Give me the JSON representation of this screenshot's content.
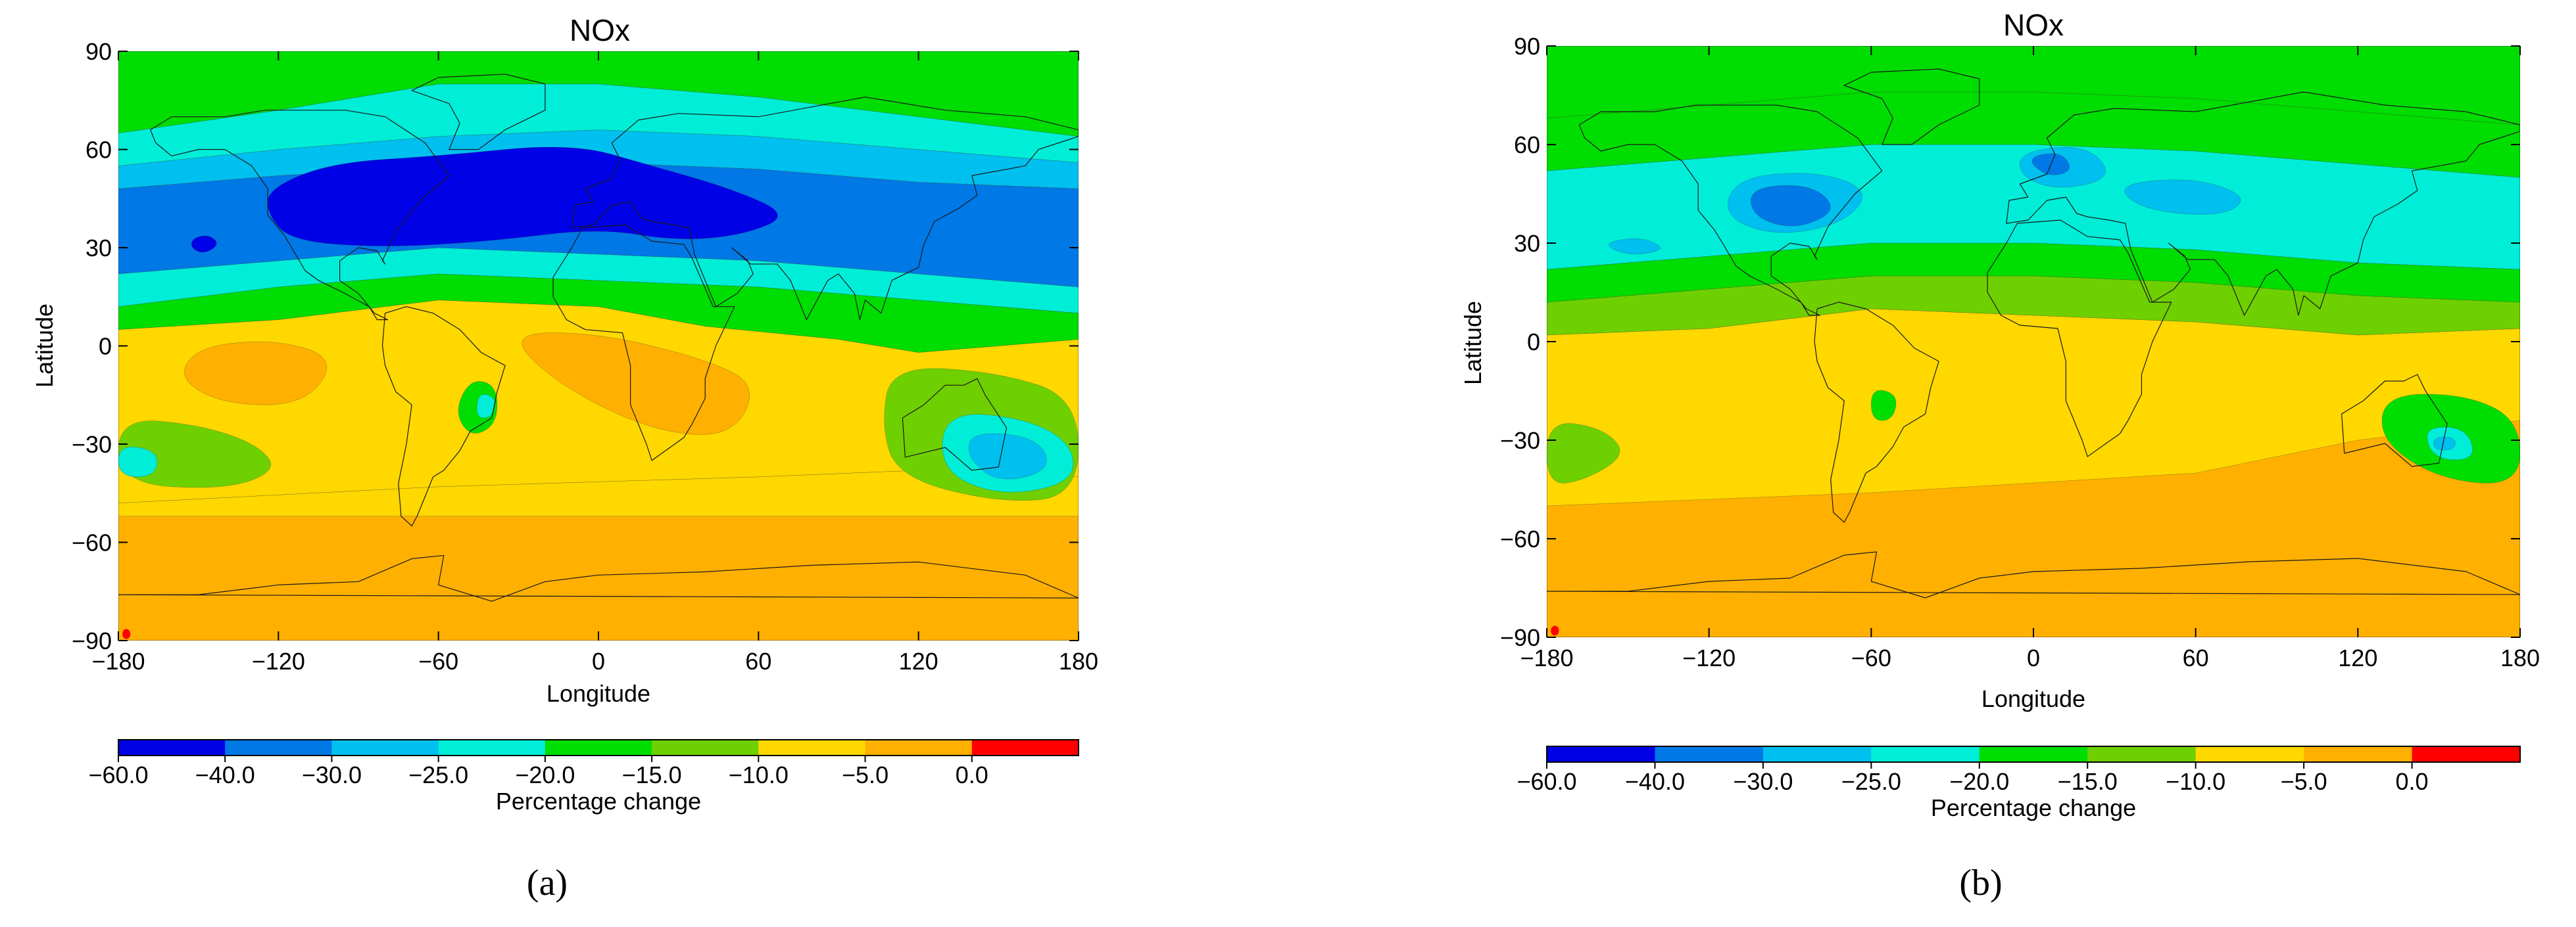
{
  "colors": {
    "band_-60_-40": "#0000e6",
    "band_-40_-30": "#0078e6",
    "band_-30_-25": "#00c0ef",
    "band_-25_-20": "#00eed8",
    "band_-20_-15": "#00dd00",
    "band_-15_-10": "#6ed000",
    "band_-10_-5": "#ffd800",
    "band_-5_0": "#ffb000",
    "band_0_plus": "#ff0000",
    "coastline": "#1a1a1a"
  },
  "chart_data": [
    {
      "type": "heatmap",
      "panel": "(a)",
      "title": "NOx",
      "xlabel": "Longitude",
      "ylabel": "Latitude",
      "xlim": [
        -180,
        180
      ],
      "ylim": [
        -90,
        90
      ],
      "xticks": [
        "−180",
        "−120",
        "−60",
        "0",
        "60",
        "120",
        "180"
      ],
      "yticks": [
        "90",
        "60",
        "30",
        "0",
        "−30",
        "−60",
        "−90"
      ],
      "colorbar_label": "Percentage change",
      "colorbar_ticks": [
        "−60.0",
        "−40.0",
        "−30.0",
        "−25.0",
        "−20.0",
        "−15.0",
        "−10.0",
        "−5.0",
        "0.0"
      ],
      "levels": [
        -60,
        -40,
        -30,
        -25,
        -20,
        -15,
        -10,
        -5,
        0
      ],
      "latitude_profile_percentage_change": [
        {
          "lat_range": [
            65,
            90
          ],
          "value_range": [
            -20,
            -15
          ]
        },
        {
          "lat_range": [
            55,
            65
          ],
          "value_range": [
            -25,
            -20
          ]
        },
        {
          "lat_range": [
            45,
            55
          ],
          "value_range": [
            -30,
            -25
          ]
        },
        {
          "lat_range": [
            25,
            45
          ],
          "value_range": [
            -40,
            -30
          ]
        },
        {
          "lat_range": [
            30,
            62
          ],
          "lon_range": [
            -120,
            70
          ],
          "value_range": [
            -60,
            -40
          ]
        },
        {
          "lat_range": [
            12,
            25
          ],
          "value_range": [
            -25,
            -20
          ]
        },
        {
          "lat_range": [
            5,
            12
          ],
          "value_range": [
            -20,
            -15
          ]
        },
        {
          "lat_range": [
            -48,
            5
          ],
          "value_range": [
            -10,
            -5
          ]
        },
        {
          "lat_range": [
            -48,
            -22
          ],
          "lon_range": [
            -180,
            -100
          ],
          "value_range": [
            -20,
            -10
          ]
        },
        {
          "lat_range": [
            -90,
            -48
          ],
          "value_range": [
            -5,
            0
          ]
        }
      ]
    },
    {
      "type": "heatmap",
      "panel": "(b)",
      "title": "NOx",
      "xlabel": "Longitude",
      "ylabel": "Latitude",
      "xlim": [
        -180,
        180
      ],
      "ylim": [
        -90,
        90
      ],
      "xticks": [
        "−180",
        "−120",
        "−60",
        "0",
        "60",
        "120",
        "180"
      ],
      "yticks": [
        "90",
        "60",
        "30",
        "0",
        "−30",
        "−60",
        "−90"
      ],
      "colorbar_label": "Percentage change",
      "colorbar_ticks": [
        "−60.0",
        "−40.0",
        "−30.0",
        "−25.0",
        "−20.0",
        "−15.0",
        "−10.0",
        "−5.0",
        "0.0"
      ],
      "levels": [
        -60,
        -40,
        -30,
        -25,
        -20,
        -15,
        -10,
        -5,
        0
      ],
      "latitude_profile_percentage_change": [
        {
          "lat_range": [
            68,
            90
          ],
          "value_range": [
            -20,
            -15
          ]
        },
        {
          "lat_range": [
            55,
            68
          ],
          "value_range": [
            -20,
            -15
          ]
        },
        {
          "lat_range": [
            22,
            55
          ],
          "value_range": [
            -30,
            -20
          ]
        },
        {
          "lat_range": [
            30,
            55
          ],
          "lon_range": [
            -100,
            40
          ],
          "value_range": [
            -40,
            -30
          ]
        },
        {
          "lat_range": [
            12,
            22
          ],
          "value_range": [
            -20,
            -15
          ]
        },
        {
          "lat_range": [
            2,
            12
          ],
          "value_range": [
            -15,
            -10
          ]
        },
        {
          "lat_range": [
            -50,
            2
          ],
          "value_range": [
            -10,
            -5
          ]
        },
        {
          "lat_range": [
            -48,
            -25
          ],
          "lon_range": [
            -180,
            -130
          ],
          "value_range": [
            -20,
            -10
          ]
        },
        {
          "lat_range": [
            -90,
            -50
          ],
          "value_range": [
            -5,
            0
          ]
        }
      ]
    }
  ]
}
